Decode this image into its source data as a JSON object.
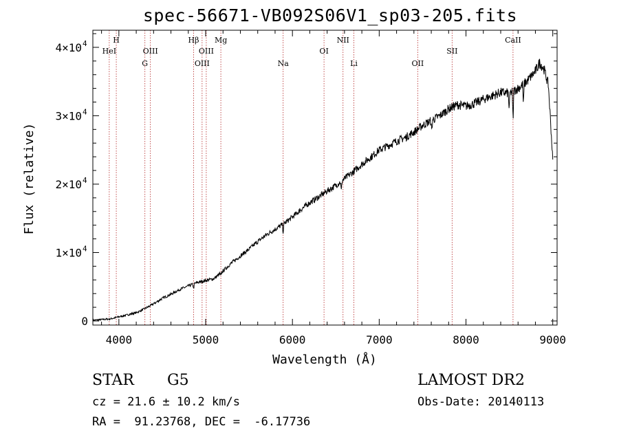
{
  "chart_data": {
    "type": "line",
    "title": "spec-56671-VB092S06V1_sp03-205.fits",
    "xlabel": "Wavelength (Å)",
    "ylabel": "Flux (relative)",
    "xlim": [
      3700,
      9050
    ],
    "ylim": [
      -600,
      42500
    ],
    "xticks": [
      4000,
      5000,
      6000,
      7000,
      8000,
      9000
    ],
    "yticks": [
      {
        "value": 0,
        "base": "0",
        "exp": ""
      },
      {
        "value": 10000,
        "base": "1×10",
        "exp": "4"
      },
      {
        "value": 20000,
        "base": "2×10",
        "exp": "4"
      },
      {
        "value": 30000,
        "base": "3×10",
        "exp": "4"
      },
      {
        "value": 40000,
        "base": "4×10",
        "exp": "4"
      }
    ],
    "series": [
      {
        "x": [
          3700,
          3800,
          3900,
          4000,
          4100,
          4200,
          4300,
          4400,
          4500,
          4600,
          4700,
          4800,
          4900,
          5000,
          5100,
          5200,
          5300,
          5400,
          5500,
          5600,
          5700,
          5800,
          5900,
          6000,
          6100,
          6200,
          6300,
          6400,
          6500,
          6600,
          6700,
          6800,
          6900,
          7000,
          7100,
          7200,
          7300,
          7400,
          7500,
          7600,
          7700,
          7800,
          7900,
          8000,
          8100,
          8200,
          8300,
          8400,
          8500,
          8600,
          8700,
          8800,
          8850,
          8900,
          8950,
          9000
        ],
        "y": [
          100,
          200,
          300,
          600,
          900,
          1200,
          1800,
          2500,
          3300,
          3900,
          4600,
          5100,
          5600,
          5900,
          6200,
          7300,
          8500,
          9500,
          10500,
          11600,
          12600,
          13400,
          14200,
          15200,
          16300,
          17300,
          18100,
          19000,
          19800,
          20800,
          21800,
          22900,
          23900,
          25000,
          25600,
          26300,
          26800,
          27600,
          28600,
          29300,
          30000,
          31000,
          31600,
          31400,
          31800,
          32400,
          32900,
          33400,
          33300,
          34000,
          35000,
          36500,
          37800,
          36800,
          34500,
          23500
        ]
      }
    ],
    "lines": [
      {
        "x": 3889,
        "label": "HeI",
        "row": 2
      },
      {
        "x": 3970,
        "label": "H",
        "row": 1
      },
      {
        "x": 4300,
        "label": "G",
        "row": 3
      },
      {
        "x": 4363,
        "label": "OIII",
        "row": 2
      },
      {
        "x": 4861,
        "label": "Hβ",
        "row": 1
      },
      {
        "x": 4959,
        "label": "OIII",
        "row": 3
      },
      {
        "x": 5007,
        "label": "OIII",
        "row": 2
      },
      {
        "x": 5175,
        "label": "Mg",
        "row": 1
      },
      {
        "x": 5893,
        "label": "Na",
        "row": 3
      },
      {
        "x": 6364,
        "label": "OI",
        "row": 2
      },
      {
        "x": 6583,
        "label": "NII",
        "row": 1
      },
      {
        "x": 6708,
        "label": "Li",
        "row": 3
      },
      {
        "x": 7444,
        "label": "OII",
        "row": 3
      },
      {
        "x": 7840,
        "label": "SII",
        "row": 2
      },
      {
        "x": 8542,
        "label": "CaII",
        "row": 1
      }
    ]
  },
  "info": {
    "object_class": "STAR",
    "subclass": "G5",
    "survey": "LAMOST DR2",
    "cz": "cz = 21.6 ± 10.2 km/s",
    "obs_date": "Obs-Date: 20140113",
    "radec": "RA =  91.23768, DEC =  -6.17736"
  }
}
